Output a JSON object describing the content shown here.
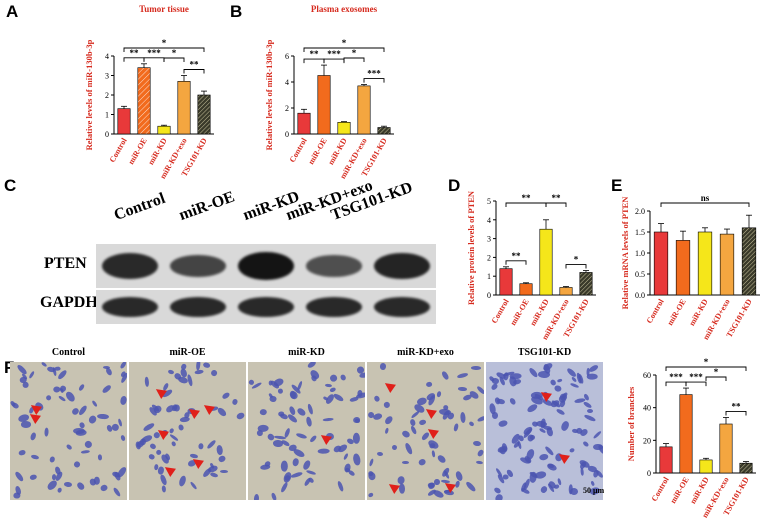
{
  "panels": {
    "A": "A",
    "B": "B",
    "C": "C",
    "D": "D",
    "E": "E",
    "F": "F"
  },
  "colors": {
    "control": "#e8393a",
    "miR-OE": "#f26b1d",
    "miR-KD": "#f5e61a",
    "miR-KD+exo": "#f4a640",
    "TSG101-KD": "#3a3a2a",
    "title_red": "#d62a1e"
  },
  "blot": {
    "lanes": [
      "Control",
      "miR-OE",
      "miR-KD",
      "miR-KD+exo",
      "TSG101-KD"
    ],
    "rows": [
      "PTEN",
      "GAPDH"
    ],
    "pten_intensity": [
      0.8,
      0.55,
      1.0,
      0.45,
      0.85
    ],
    "gapdh_intensity": [
      0.8,
      0.8,
      0.8,
      0.8,
      0.8
    ]
  },
  "micrographs": {
    "titles": [
      "Control",
      "miR-OE",
      "miR-KD",
      "miR-KD+exo",
      "TSG101-KD"
    ],
    "scale_bar": "50 μm"
  },
  "chart_data": [
    {
      "id": "A",
      "type": "bar",
      "title": "Tumor tissue",
      "ylabel": "Relative levels of miR-130b-3p",
      "categories": [
        "Control",
        "miR-OE",
        "miR-KD",
        "miR-KD+exo",
        "TSG101-KD"
      ],
      "values": [
        1.3,
        3.4,
        0.4,
        2.7,
        2.0
      ],
      "errors": [
        0.12,
        0.2,
        0.05,
        0.3,
        0.2
      ],
      "ylim": [
        0,
        4
      ],
      "yticks": [
        0,
        1,
        2,
        3,
        4
      ],
      "significance": [
        {
          "from": 0,
          "to": 1,
          "label": "**",
          "level": 0
        },
        {
          "from": 1,
          "to": 2,
          "label": "***",
          "level": 0
        },
        {
          "from": 2,
          "to": 3,
          "label": "*",
          "level": 1
        },
        {
          "from": 3,
          "to": 4,
          "label": "**",
          "level": 0
        },
        {
          "from": 0,
          "to": 4,
          "label": "*",
          "level": 2
        }
      ]
    },
    {
      "id": "B",
      "type": "bar",
      "title": "Plasma exosomes",
      "ylabel": "Relative levels of miR-130b-3p",
      "categories": [
        "Control",
        "miR-OE",
        "miR-KD",
        "miR-KD+exo",
        "TSG101-KD"
      ],
      "values": [
        1.6,
        4.5,
        0.9,
        3.7,
        0.5
      ],
      "errors": [
        0.3,
        0.8,
        0.05,
        0.1,
        0.1
      ],
      "ylim": [
        0,
        6
      ],
      "yticks": [
        0,
        2,
        4,
        6
      ],
      "significance": [
        {
          "from": 0,
          "to": 1,
          "label": "**",
          "level": 0
        },
        {
          "from": 1,
          "to": 2,
          "label": "***",
          "level": 0
        },
        {
          "from": 2,
          "to": 3,
          "label": "*",
          "level": 1
        },
        {
          "from": 3,
          "to": 4,
          "label": "***",
          "level": 0
        },
        {
          "from": 0,
          "to": 4,
          "label": "*",
          "level": 2
        }
      ]
    },
    {
      "id": "D",
      "type": "bar",
      "title": "",
      "ylabel": "Relative protein levels of PTEN",
      "categories": [
        "Control",
        "miR-OE",
        "miR-KD",
        "miR-KD+exo",
        "TSG101-KD"
      ],
      "values": [
        1.4,
        0.6,
        3.5,
        0.4,
        1.2
      ],
      "errors": [
        0.1,
        0.05,
        0.5,
        0.05,
        0.1
      ],
      "ylim": [
        0,
        5
      ],
      "yticks": [
        0,
        1,
        2,
        3,
        4,
        5
      ],
      "significance": [
        {
          "from": 0,
          "to": 1,
          "label": "**",
          "level": 0
        },
        {
          "from": 2,
          "to": 3,
          "label": "**",
          "level": 1
        },
        {
          "from": 3,
          "to": 4,
          "label": "*",
          "level": 0
        },
        {
          "from": 0,
          "to": 2,
          "label": "**",
          "level": 1
        }
      ]
    },
    {
      "id": "E",
      "type": "bar",
      "title": "",
      "ylabel": "Relative mRNA levels of PTEN",
      "categories": [
        "Control",
        "miR-OE",
        "miR-KD",
        "miR-KD+exo",
        "TSG101-KD"
      ],
      "values": [
        1.5,
        1.3,
        1.5,
        1.45,
        1.6
      ],
      "errors": [
        0.2,
        0.22,
        0.1,
        0.12,
        0.3
      ],
      "ylim": [
        0,
        2.0
      ],
      "yticks": [
        0.0,
        0.5,
        1.0,
        1.5,
        2.0
      ],
      "significance": [
        {
          "from": 0,
          "to": 4,
          "label": "ns",
          "level": 2
        }
      ]
    },
    {
      "id": "F",
      "type": "bar",
      "title": "",
      "ylabel": "Number of branches",
      "categories": [
        "Control",
        "miR-OE",
        "miR-KD",
        "miR-KD+exo",
        "TSG101-KD"
      ],
      "values": [
        16,
        48,
        8,
        30,
        6
      ],
      "errors": [
        2,
        4,
        1,
        4,
        1
      ],
      "ylim": [
        0,
        60
      ],
      "yticks": [
        0,
        20,
        40,
        60
      ],
      "significance": [
        {
          "from": 0,
          "to": 1,
          "label": "***",
          "level": 0
        },
        {
          "from": 1,
          "to": 2,
          "label": "***",
          "level": 0
        },
        {
          "from": 2,
          "to": 3,
          "label": "*",
          "level": 1
        },
        {
          "from": 3,
          "to": 4,
          "label": "**",
          "level": 0
        },
        {
          "from": 0,
          "to": 4,
          "label": "*",
          "level": 2
        }
      ]
    }
  ]
}
